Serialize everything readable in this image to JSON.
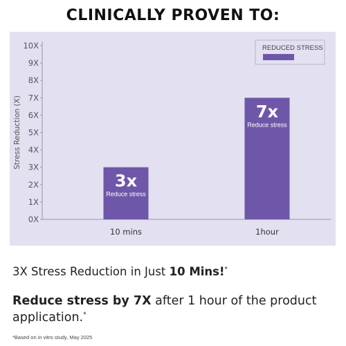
{
  "header": {
    "title": "CLINICALLY PROVEN TO:"
  },
  "chart_data": {
    "type": "bar",
    "ylabel": "Stress Reduction (X)",
    "ylim": [
      0,
      10
    ],
    "yticks": [
      "0X",
      "1X",
      "2X",
      "3X",
      "4X",
      "5X",
      "6X",
      "7X",
      "8X",
      "9X",
      "10X"
    ],
    "categories": [
      "10 mins",
      "1hour"
    ],
    "series": [
      {
        "name": "REDUCED STRESS",
        "values": [
          3,
          7
        ]
      }
    ],
    "data_labels": [
      {
        "big": "3x",
        "small": "Reduce stress"
      },
      {
        "big": "7x",
        "small": "Reduce stress"
      }
    ],
    "bar_color": "#6e57a8",
    "panel_color": "#e2e0f1",
    "legend_position": "top-right",
    "grid": false
  },
  "captions": {
    "line1_pre": "3X Stress Reduction in Just ",
    "line1_bold": "10 Mins!",
    "line1_mark": "*",
    "line2_bold": "Reduce stress by 7X",
    "line2_rest": " after 1 hour of the product application.",
    "line2_mark": "*"
  },
  "footnote": "*Based on in vitro study, May 2025"
}
